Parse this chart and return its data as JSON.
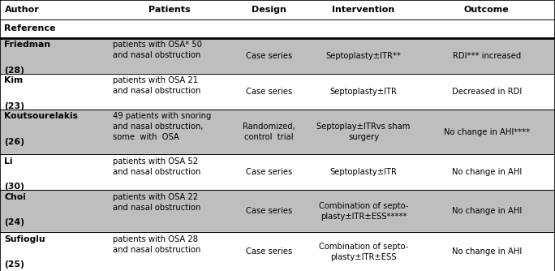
{
  "header_bg": "#ffffff",
  "row_bg_shaded": "#bebebe",
  "row_bg_white": "#ffffff",
  "rows": [
    {
      "author": "Friedman",
      "ref": "(28)",
      "patients": "patients with OSA* 50\nand nasal obstruction",
      "design": "Case series",
      "intervention": "Septoplasty±ITR**",
      "outcome": "RDI*** increased",
      "shaded": true
    },
    {
      "author": "Kim",
      "ref": "(23)",
      "patients": "patients with OSA 21\nand nasal obstruction",
      "design": "Case series",
      "intervention": "Septoplasty±ITR",
      "outcome": "Decreased in RDI",
      "shaded": false
    },
    {
      "author": "Koutsourelakis",
      "ref": "(26)",
      "patients": "49 patients with snoring\nand nasal obstruction,\nsome  with  OSA",
      "design": "Randomized,\ncontrol  trial",
      "intervention": "Septoplay±ITRvs sham\nsurgery",
      "outcome": "No change in AHI****",
      "shaded": true
    },
    {
      "author": "Li",
      "ref": "(30)",
      "patients": "patients with OSA 52\nand nasal obstruction",
      "design": "Case series",
      "intervention": "Septoplasty±ITR",
      "outcome": "No change in AHI",
      "shaded": false
    },
    {
      "author": "Choi",
      "ref": "(24)",
      "patients": "patients with OSA 22\nand nasal obstruction",
      "design": "Case series",
      "intervention": "Combination of septo-\nplasty±ITR±ESS*****",
      "outcome": "No change in AHI",
      "shaded": true
    },
    {
      "author": "Sufioglu",
      "ref": "(25)",
      "patients": "patients with OSA 28\nand nasal obstruction",
      "design": "Case series",
      "intervention": "Combination of septo-\nplasty±ITR±ESS",
      "outcome": "No change in AHI",
      "shaded": false
    }
  ],
  "font_size": 7.2,
  "author_font_size": 7.8,
  "header_font_size": 8.0,
  "text_color": "#000000",
  "figsize": [
    6.84,
    3.34
  ],
  "dpi": 100
}
